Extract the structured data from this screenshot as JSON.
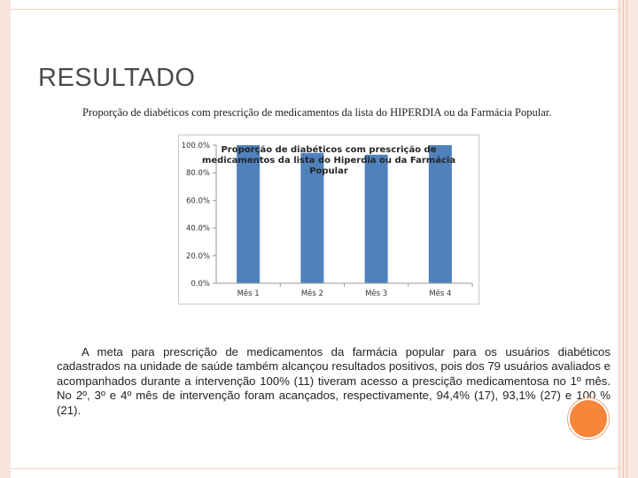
{
  "slide": {
    "title": "RESULTADO",
    "subtitle": "Proporção de diabéticos com prescrição de medicamentos da lista do HIPERDIA ou da Farmácia Popular.",
    "body": "A meta para prescrição de medicamentos da farmácia popular para os usuários diabéticos cadastrados na unidade de saúde também alcançou resultados positivos, pois dos 79 usuários avaliados e acompanhados durante a intervenção 100% (11) tiveram acesso a prescição medicamentosa no 1º mês. No 2º, 3º e 4º mês de intervenção foram acançados, respectivamente, 94,4% (17), 93,1% (27) e 100 % (21).",
    "colors": {
      "bar": "#4f81bd",
      "accent_dot": "#f7853a",
      "frame": "#f7e3dc"
    }
  },
  "chart_data": {
    "type": "bar",
    "title_lines": [
      "Proporção de diabéticos com prescrição de",
      "medicamentos da lista do Hiperdia ou da Farmácia",
      "Popular"
    ],
    "categories": [
      "Mês 1",
      "Mês 2",
      "Mês 3",
      "Mês 4"
    ],
    "values": [
      100.0,
      94.4,
      93.1,
      100.0
    ],
    "ylim": [
      0,
      100
    ],
    "yticks": [
      "0.0%",
      "20.0%",
      "40.0%",
      "60.0%",
      "80.0%",
      "100.0%"
    ],
    "ytick_values": [
      0,
      20,
      40,
      60,
      80,
      100
    ],
    "unit": "%",
    "grid": false,
    "legend": "none"
  }
}
